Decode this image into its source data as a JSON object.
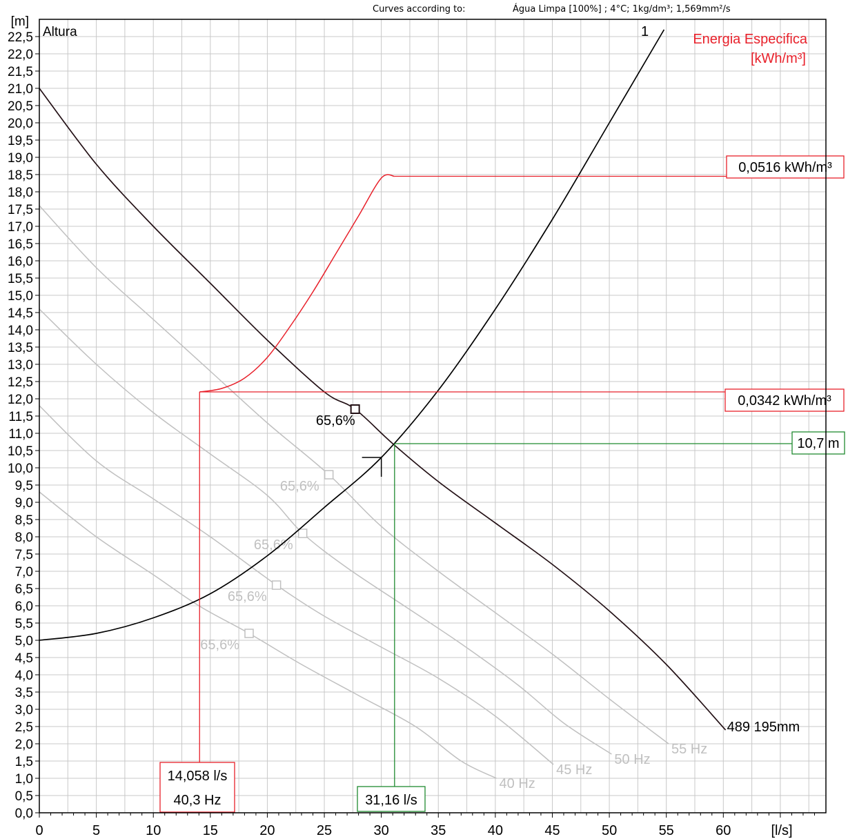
{
  "header": {
    "curves_label": "Curves according to:",
    "fluid": "Água Limpa [100%] ; 4°C; 1kg/dm³; 1,569mm²/s"
  },
  "chart_data": {
    "type": "line",
    "xlabel": "[l/s]",
    "ylabel": "[m]",
    "ylabel_inside": "Altura",
    "secondary_label": [
      "Energia Especifica",
      "[kWh/m³]"
    ],
    "xlim": [
      0,
      69
    ],
    "ylim": [
      0,
      23
    ],
    "x_ticks": [
      0,
      5,
      10,
      15,
      20,
      25,
      30,
      35,
      40,
      45,
      50,
      55,
      60
    ],
    "y_ticks": [
      "0,0",
      "0,5",
      "1,0",
      "1,5",
      "2,0",
      "2,5",
      "3,0",
      "3,5",
      "4,0",
      "4,5",
      "5,0",
      "5,5",
      "6,0",
      "6,5",
      "7,0",
      "7,5",
      "8,0",
      "8,5",
      "9,0",
      "9,5",
      "10,0",
      "10,5",
      "11,0",
      "11,5",
      "12,0",
      "12,5",
      "13,0",
      "13,5",
      "14,0",
      "14,5",
      "15,0",
      "15,5",
      "16,0",
      "16,5",
      "17,0",
      "17,5",
      "18,0",
      "18,5",
      "19,0",
      "19,5",
      "20,0",
      "20,5",
      "21,0",
      "21,5",
      "22,0",
      "22,5"
    ],
    "colors": {
      "pump": "#231015",
      "system": "#000000",
      "energy": "#e8202a",
      "speed": "#c0c0c0",
      "operating": "#1f8a2f"
    },
    "pump_curve": {
      "name": "489 195mm",
      "points": [
        [
          0,
          21.0
        ],
        [
          5,
          18.8
        ],
        [
          10,
          17.0
        ],
        [
          15,
          15.35
        ],
        [
          20,
          13.7
        ],
        [
          25,
          12.2
        ],
        [
          27.7,
          11.7
        ],
        [
          31,
          10.7
        ],
        [
          35,
          9.6
        ],
        [
          40,
          8.4
        ],
        [
          45,
          7.2
        ],
        [
          50,
          5.85
        ],
        [
          55,
          4.3
        ],
        [
          60.2,
          2.4
        ]
      ],
      "bep": {
        "x": 27.7,
        "y": 11.7,
        "label": "65,6%"
      }
    },
    "speed_curves": [
      {
        "name": "55 Hz",
        "points": [
          [
            0,
            17.6
          ],
          [
            5,
            15.8
          ],
          [
            10,
            14.3
          ],
          [
            15,
            12.8
          ],
          [
            20,
            11.3
          ],
          [
            25.4,
            9.8
          ],
          [
            30,
            8.3
          ],
          [
            35,
            7.0
          ],
          [
            40,
            5.8
          ],
          [
            45,
            4.6
          ],
          [
            50,
            3.3
          ],
          [
            55.2,
            2.0
          ]
        ],
        "bep": {
          "x": 25.4,
          "y": 9.8,
          "label": "65,6%"
        }
      },
      {
        "name": "50 Hz",
        "points": [
          [
            0,
            14.6
          ],
          [
            5,
            13.0
          ],
          [
            10,
            11.6
          ],
          [
            15,
            10.4
          ],
          [
            20,
            9.2
          ],
          [
            23.1,
            8.1
          ],
          [
            27,
            7.1
          ],
          [
            32,
            6.0
          ],
          [
            37,
            4.9
          ],
          [
            42,
            3.7
          ],
          [
            46,
            2.6
          ],
          [
            50.2,
            1.7
          ]
        ],
        "bep": {
          "x": 23.1,
          "y": 8.1,
          "label": "65,6%"
        }
      },
      {
        "name": "45 Hz",
        "points": [
          [
            0,
            11.8
          ],
          [
            5,
            10.2
          ],
          [
            10,
            9.1
          ],
          [
            15,
            8.0
          ],
          [
            20.8,
            6.6
          ],
          [
            25,
            5.7
          ],
          [
            30,
            4.8
          ],
          [
            35,
            3.9
          ],
          [
            40,
            2.8
          ],
          [
            45.1,
            1.4
          ]
        ],
        "bep": {
          "x": 20.8,
          "y": 6.6,
          "label": "65,6%"
        }
      },
      {
        "name": "40 Hz",
        "points": [
          [
            0,
            9.3
          ],
          [
            5,
            8.0
          ],
          [
            10,
            6.9
          ],
          [
            14,
            6.0
          ],
          [
            18.4,
            5.2
          ],
          [
            23,
            4.3
          ],
          [
            28,
            3.4
          ],
          [
            33,
            2.5
          ],
          [
            37,
            1.5
          ],
          [
            40.1,
            1.0
          ]
        ],
        "bep": {
          "x": 18.4,
          "y": 5.2,
          "label": "65,6%"
        }
      }
    ],
    "system_curve": {
      "name": "1",
      "points": [
        [
          0,
          5.0
        ],
        [
          5,
          5.2
        ],
        [
          10,
          5.65
        ],
        [
          15,
          6.35
        ],
        [
          20,
          7.45
        ],
        [
          25,
          8.85
        ],
        [
          30,
          10.3
        ],
        [
          35,
          12.25
        ],
        [
          40,
          14.6
        ],
        [
          45,
          17.2
        ],
        [
          50,
          20.0
        ],
        [
          54.8,
          22.7
        ]
      ]
    },
    "energy_curve": {
      "points": [
        [
          14.06,
          12.2
        ],
        [
          16,
          12.3
        ],
        [
          18,
          12.6
        ],
        [
          20,
          13.2
        ],
        [
          22,
          14.1
        ],
        [
          24,
          15.1
        ],
        [
          26,
          16.2
        ],
        [
          28,
          17.3
        ],
        [
          30,
          18.4
        ],
        [
          31.16,
          18.45
        ]
      ]
    },
    "annotations": {
      "energy_low": "0,0342 kWh/m³",
      "energy_high": "0,0516 kWh/m³",
      "flow_low": "14,058 l/s",
      "freq_low": "40,3 Hz",
      "flow_op": "31,16 l/s",
      "head_op": "10,7 m"
    },
    "operating_point": {
      "x": 31.16,
      "y": 10.7
    },
    "low_point": {
      "x": 14.058,
      "y": 12.2
    },
    "high_level": 18.45,
    "requested_point": {
      "x": 30.0,
      "y": 10.3
    },
    "grid": true
  }
}
